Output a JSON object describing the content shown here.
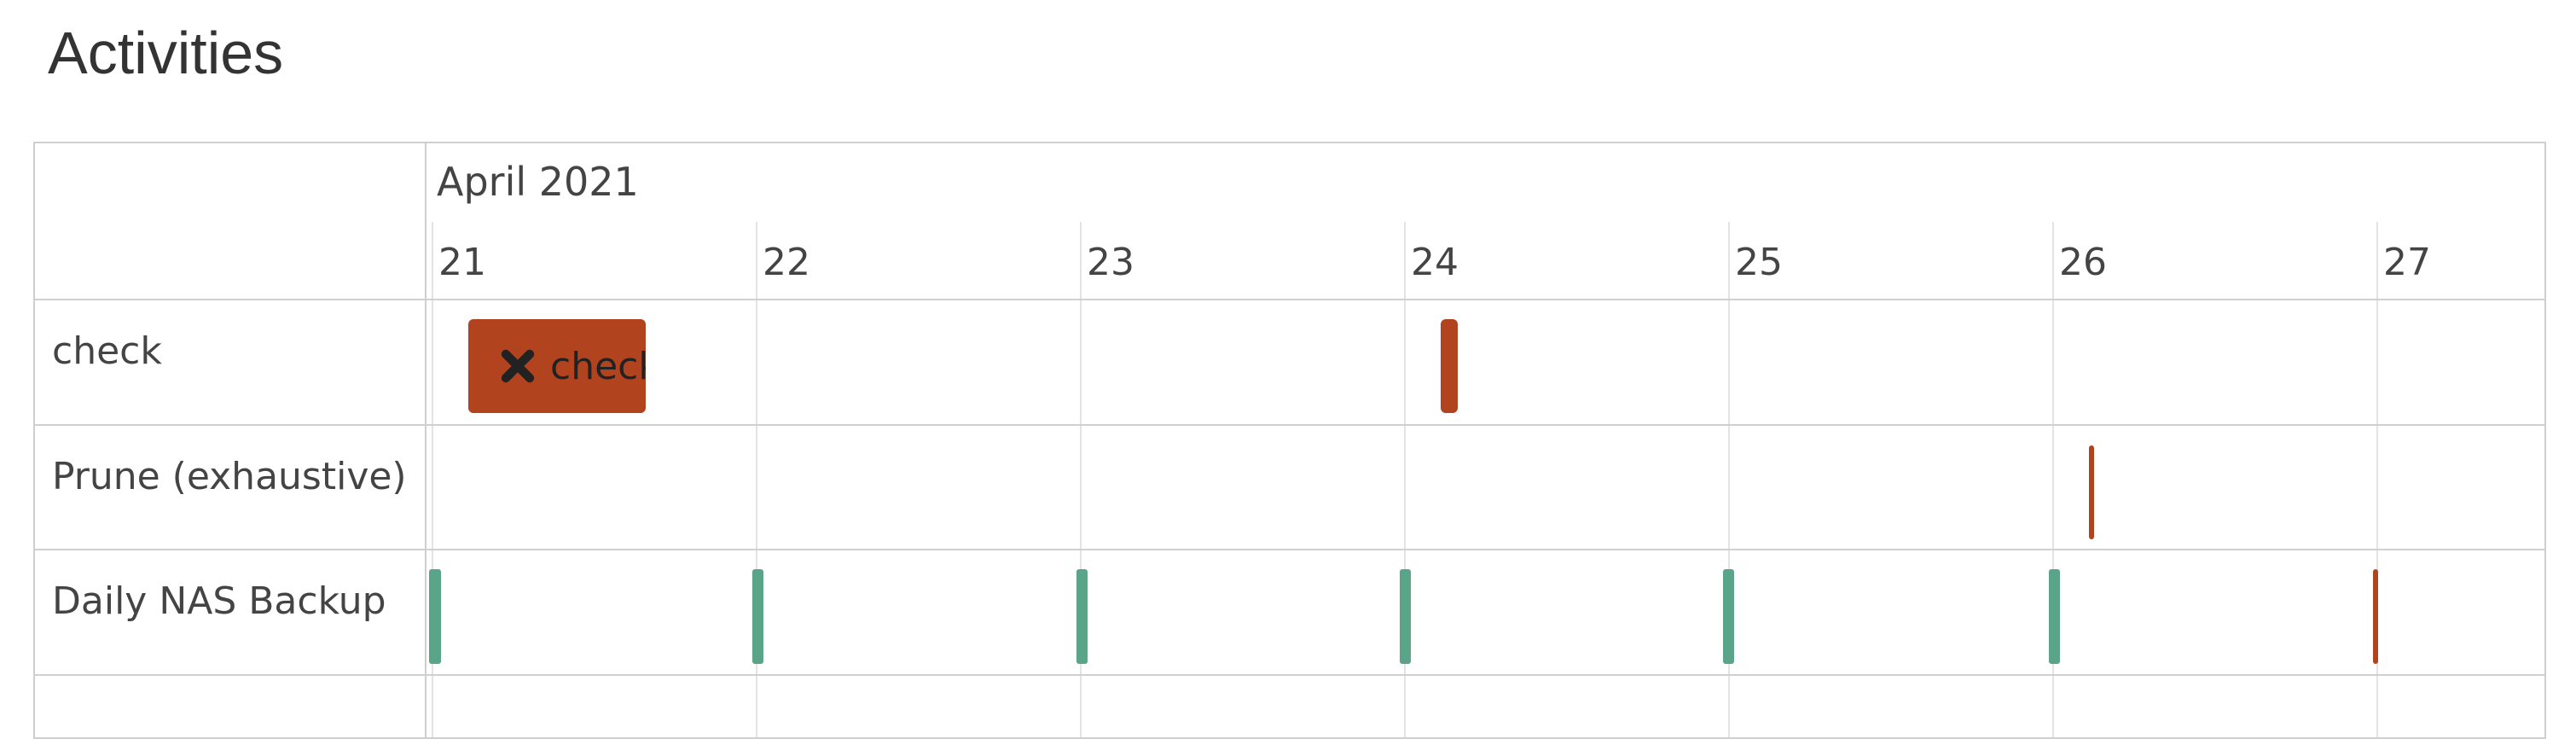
{
  "header": {
    "title": "Activities"
  },
  "timeline": {
    "month": "April 2021",
    "days": [
      "21",
      "22",
      "23",
      "24",
      "25",
      "26",
      "27"
    ],
    "groups": [
      "check",
      "Prune (exhaustive)",
      "Daily NAS Backup"
    ],
    "items": [
      {
        "label": "check"
      }
    ]
  }
}
